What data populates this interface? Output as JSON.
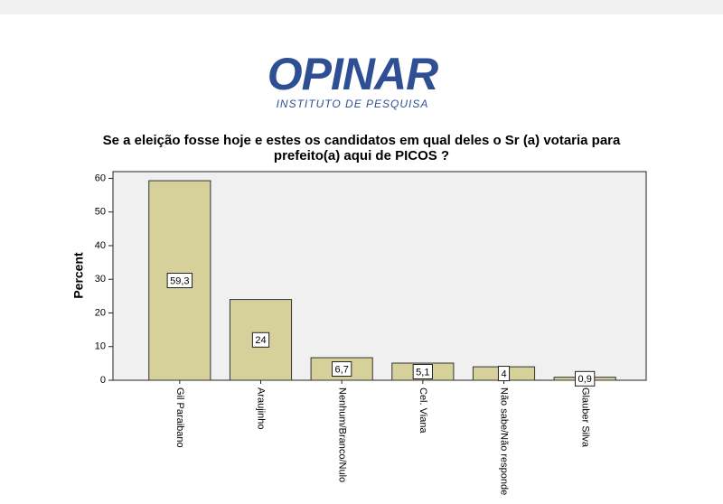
{
  "logo": {
    "name": "OPINAR",
    "tagline": "INSTITUTO DE PESQUISA"
  },
  "chart_data": {
    "type": "bar",
    "title": "Se a eleição fosse hoje e estes os candidatos em qual deles o Sr (a) votaria para",
    "subtitle": "prefeito(a) aqui de PICOS ?",
    "y_label": "Percent",
    "categories": [
      "Gil Paraibano",
      "Araujinho",
      "Nenhum/Branco/Nulo",
      "Cel. Viana",
      "Não sabe/Não responde",
      "Glauber Silva"
    ],
    "values": [
      59.3,
      24,
      6.7,
      5.1,
      4,
      0.9
    ],
    "value_labels": [
      "59,3",
      "24",
      "6,7",
      "5,1",
      "4",
      "0,9"
    ],
    "color": "#d6d09a",
    "ylim": [
      0,
      62
    ],
    "yticks": [
      0,
      10,
      20,
      30,
      40,
      50,
      60
    ]
  }
}
